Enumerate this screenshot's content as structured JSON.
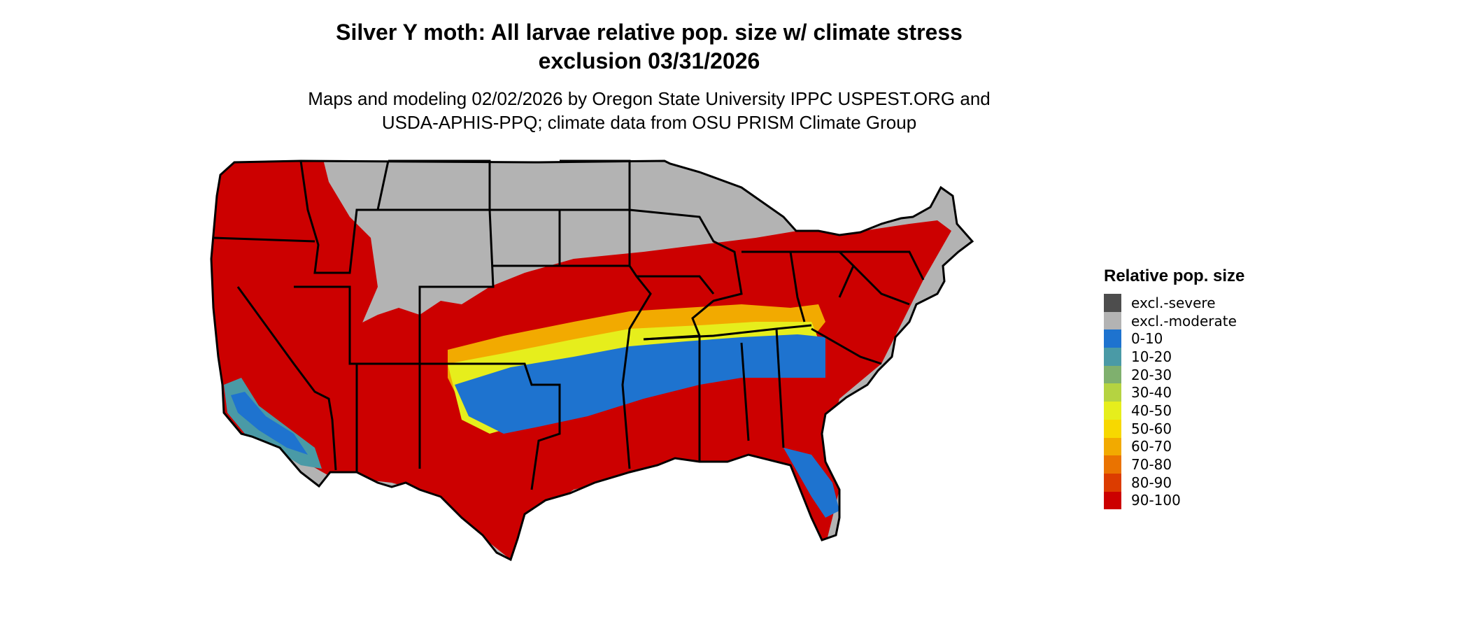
{
  "title": {
    "line1": "Silver Y moth: All larvae relative pop. size w/ climate stress",
    "line2": "exclusion 03/31/2026"
  },
  "subtitle": {
    "line1": "Maps and modeling 02/02/2026 by Oregon State University IPPC USPEST.ORG and",
    "line2": "USDA-APHIS-PPQ; climate data from OSU PRISM Climate Group"
  },
  "legend": {
    "title": "Relative pop. size",
    "items": [
      {
        "label": "excl.-severe",
        "color": "#4d4d4d"
      },
      {
        "label": "excl.-moderate",
        "color": "#b3b3b3"
      },
      {
        "label": "0-10",
        "color": "#1e73cf"
      },
      {
        "label": "10-20",
        "color": "#4a9aa6"
      },
      {
        "label": "20-30",
        "color": "#7fb06e"
      },
      {
        "label": "30-40",
        "color": "#b5d341"
      },
      {
        "label": "40-50",
        "color": "#e6ee1c"
      },
      {
        "label": "50-60",
        "color": "#f7d800"
      },
      {
        "label": "60-70",
        "color": "#f2aa00"
      },
      {
        "label": "70-80",
        "color": "#ea7300"
      },
      {
        "label": "80-90",
        "color": "#dc3c00"
      },
      {
        "label": "90-100",
        "color": "#cc0000"
      }
    ]
  }
}
